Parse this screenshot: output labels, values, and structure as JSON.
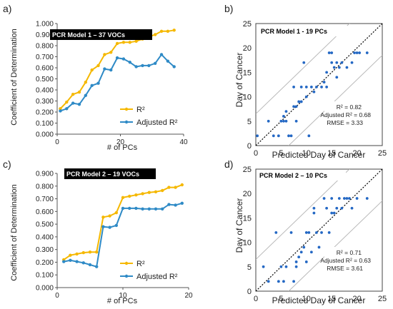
{
  "colors": {
    "r2": "#f5b800",
    "adj": "#2e8ac6",
    "scatter": "#2468c4",
    "axis": "#333333",
    "band": "#b9b9b9",
    "identity": "#000000",
    "panel_bg": "#000000",
    "panel_bg_text": "#ffffff"
  },
  "chart_data": [
    {
      "panel_label": "a)",
      "type": "line",
      "title": "PCR Model 1 – 37 VOCs",
      "xlabel": "# of PCs",
      "ylabel": "Coefficient of Determination",
      "xlim": [
        0,
        40
      ],
      "ylim": [
        0,
        1
      ],
      "xticks": [
        "0",
        "20",
        "40"
      ],
      "yticks": [
        "0.000",
        "0.100",
        "0.200",
        "0.300",
        "0.400",
        "0.500",
        "0.600",
        "0.700",
        "0.800",
        "0.900",
        "1.000"
      ],
      "legend": [
        "R²",
        "Adjusted R²"
      ],
      "series": [
        {
          "name": "R²",
          "x": [
            1,
            3,
            5,
            7,
            9,
            11,
            13,
            15,
            17,
            19,
            21,
            23,
            25,
            27,
            29,
            31,
            33,
            35,
            37
          ],
          "values": [
            0.23,
            0.29,
            0.36,
            0.38,
            0.47,
            0.58,
            0.62,
            0.72,
            0.74,
            0.82,
            0.83,
            0.83,
            0.84,
            0.86,
            0.88,
            0.9,
            0.93,
            0.93,
            0.94
          ]
        },
        {
          "name": "Adjusted R²",
          "x": [
            1,
            3,
            5,
            7,
            9,
            11,
            13,
            15,
            17,
            19,
            21,
            23,
            25,
            27,
            29,
            31,
            33,
            35,
            37
          ],
          "values": [
            0.21,
            0.23,
            0.28,
            0.27,
            0.35,
            0.44,
            0.46,
            0.59,
            0.58,
            0.69,
            0.68,
            0.65,
            0.61,
            0.62,
            0.62,
            0.64,
            0.72,
            0.66,
            0.61
          ]
        }
      ]
    },
    {
      "panel_label": "b)",
      "type": "scatter",
      "title": "PCR Model 1 - 19 PCs",
      "xlabel": "Predicted Day of Cancer",
      "ylabel": "Day of Cancer",
      "xlim": [
        0,
        25
      ],
      "ylim": [
        0,
        25
      ],
      "xticks": [
        "0",
        "5",
        "10",
        "15",
        "20",
        "25"
      ],
      "yticks": [
        "0",
        "5",
        "10",
        "15",
        "20",
        "25"
      ],
      "band_offset": 6.5,
      "stats": [
        "R² = 0.82",
        "Adjusted R² = 0.68",
        "RMSE = 3.33"
      ],
      "points": [
        [
          0.3,
          2
        ],
        [
          2.5,
          5
        ],
        [
          3.5,
          2
        ],
        [
          4.5,
          2
        ],
        [
          5,
          5
        ],
        [
          5.5,
          5
        ],
        [
          5.5,
          6
        ],
        [
          6,
          7
        ],
        [
          6,
          5
        ],
        [
          6.5,
          2
        ],
        [
          7,
          2
        ],
        [
          7.5,
          8
        ],
        [
          7.5,
          12
        ],
        [
          8,
          8
        ],
        [
          8,
          5
        ],
        [
          8.5,
          9
        ],
        [
          9,
          9
        ],
        [
          9,
          12
        ],
        [
          9.5,
          17
        ],
        [
          10,
          12
        ],
        [
          10,
          10
        ],
        [
          10.5,
          2
        ],
        [
          11,
          12
        ],
        [
          11.5,
          11
        ],
        [
          12,
          12
        ],
        [
          13,
          12
        ],
        [
          13.5,
          13
        ],
        [
          14,
          15
        ],
        [
          14,
          12
        ],
        [
          14.5,
          19
        ],
        [
          15,
          19
        ],
        [
          15,
          17
        ],
        [
          15.5,
          16
        ],
        [
          16,
          14
        ],
        [
          16,
          17
        ],
        [
          16.5,
          16
        ],
        [
          17,
          17
        ],
        [
          18,
          16
        ],
        [
          19,
          17
        ],
        [
          19.5,
          19
        ],
        [
          20,
          19
        ],
        [
          20.5,
          19
        ],
        [
          22,
          19
        ]
      ]
    },
    {
      "panel_label": "c)",
      "type": "line",
      "title": "PCR Model 2 – 19 VOCs",
      "xlabel": "# of PCs",
      "ylabel": "Coefficient of Determination",
      "xlim": [
        0,
        20
      ],
      "ylim": [
        0,
        0.9
      ],
      "xticks": [
        "0",
        "10",
        "20"
      ],
      "yticks": [
        "0.000",
        "0.100",
        "0.200",
        "0.300",
        "0.400",
        "0.500",
        "0.600",
        "0.700",
        "0.800",
        "0.900"
      ],
      "legend": [
        "R²",
        "Adjusted R²"
      ],
      "series": [
        {
          "name": "R²",
          "x": [
            1,
            2,
            3,
            4,
            5,
            6,
            7,
            8,
            9,
            10,
            11,
            12,
            13,
            14,
            15,
            16,
            17,
            18,
            19
          ],
          "values": [
            0.22,
            0.255,
            0.265,
            0.275,
            0.28,
            0.28,
            0.555,
            0.565,
            0.59,
            0.71,
            0.72,
            0.73,
            0.74,
            0.75,
            0.755,
            0.765,
            0.79,
            0.79,
            0.81
          ]
        },
        {
          "name": "Adjusted R²",
          "x": [
            1,
            2,
            3,
            4,
            5,
            6,
            7,
            8,
            9,
            10,
            11,
            12,
            13,
            14,
            15,
            16,
            17,
            18,
            19
          ],
          "values": [
            0.205,
            0.215,
            0.205,
            0.195,
            0.18,
            0.165,
            0.48,
            0.475,
            0.49,
            0.625,
            0.625,
            0.625,
            0.62,
            0.62,
            0.62,
            0.62,
            0.655,
            0.65,
            0.665
          ]
        }
      ]
    },
    {
      "panel_label": "d)",
      "type": "scatter",
      "title": "PCR Model 2 – 10 PCs",
      "xlabel": "Predicted Day of Cancer",
      "ylabel": "Day of Cancer",
      "xlim": [
        0,
        25
      ],
      "ylim": [
        0,
        25
      ],
      "xticks": [
        "0",
        "5",
        "10",
        "15",
        "20",
        "25"
      ],
      "yticks": [
        "0",
        "5",
        "10",
        "15",
        "20",
        "25"
      ],
      "band_offset": 6.5,
      "stats": [
        "R² = 0.71",
        "Adjusted R² = 0.63",
        "RMSE = 3.61"
      ],
      "points": [
        [
          1.5,
          5
        ],
        [
          2.5,
          2
        ],
        [
          4,
          12
        ],
        [
          4.5,
          2
        ],
        [
          5,
          5
        ],
        [
          5.5,
          2
        ],
        [
          6,
          5
        ],
        [
          7,
          12
        ],
        [
          7.5,
          2
        ],
        [
          8,
          5
        ],
        [
          8,
          6
        ],
        [
          8.5,
          7
        ],
        [
          9,
          8
        ],
        [
          9.5,
          9
        ],
        [
          10,
          12
        ],
        [
          10,
          6
        ],
        [
          10.5,
          12
        ],
        [
          11,
          8
        ],
        [
          11.5,
          16
        ],
        [
          11.5,
          17
        ],
        [
          12,
          12
        ],
        [
          12.5,
          9
        ],
        [
          13,
          12
        ],
        [
          13.5,
          19
        ],
        [
          14,
          17
        ],
        [
          14.5,
          12
        ],
        [
          15,
          19
        ],
        [
          15,
          16
        ],
        [
          15.5,
          16
        ],
        [
          16,
          17
        ],
        [
          16.5,
          19
        ],
        [
          17,
          17
        ],
        [
          17.5,
          19
        ],
        [
          18,
          19
        ],
        [
          18.5,
          19
        ],
        [
          19,
          17
        ],
        [
          20,
          19
        ],
        [
          22,
          19
        ]
      ]
    }
  ]
}
